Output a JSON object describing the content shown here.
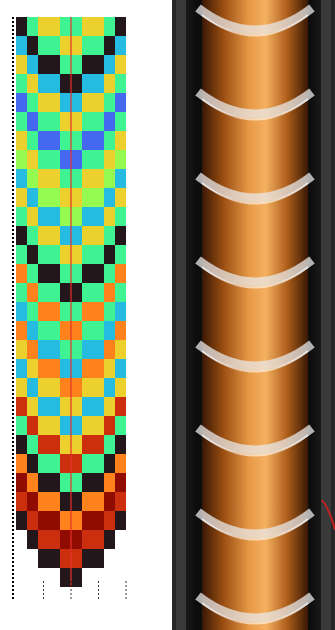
{
  "chart_data": {
    "type": "heatmap",
    "color": "turbo",
    "grid": false,
    "tick_labels": false,
    "cells": [
      [
        1,
        4,
        6,
        6,
        4,
        4,
        6,
        6,
        4,
        1
      ],
      [
        3,
        1,
        4,
        4,
        6,
        6,
        4,
        4,
        1,
        3
      ],
      [
        6,
        3,
        1,
        1,
        4,
        4,
        1,
        1,
        3,
        6
      ],
      [
        4,
        6,
        3,
        3,
        1,
        1,
        3,
        3,
        6,
        4
      ],
      [
        2,
        4,
        6,
        6,
        3,
        3,
        6,
        6,
        4,
        2
      ],
      [
        4,
        2,
        4,
        4,
        6,
        6,
        4,
        4,
        2,
        4
      ],
      [
        6,
        4,
        2,
        2,
        4,
        4,
        2,
        2,
        4,
        6
      ],
      [
        5,
        6,
        4,
        4,
        2,
        2,
        4,
        4,
        6,
        5
      ],
      [
        3,
        5,
        6,
        6,
        4,
        4,
        6,
        6,
        5,
        3
      ],
      [
        6,
        3,
        5,
        5,
        6,
        6,
        5,
        5,
        3,
        6
      ],
      [
        4,
        6,
        3,
        3,
        5,
        5,
        3,
        3,
        6,
        4
      ],
      [
        1,
        4,
        6,
        6,
        3,
        3,
        6,
        6,
        4,
        1
      ],
      [
        4,
        1,
        4,
        4,
        6,
        6,
        4,
        4,
        1,
        4
      ],
      [
        7,
        4,
        1,
        1,
        4,
        4,
        1,
        1,
        4,
        7
      ],
      [
        4,
        7,
        4,
        4,
        1,
        1,
        4,
        4,
        7,
        4
      ],
      [
        3,
        4,
        7,
        7,
        4,
        4,
        7,
        7,
        4,
        3
      ],
      [
        7,
        3,
        4,
        4,
        7,
        7,
        4,
        4,
        3,
        7
      ],
      [
        6,
        7,
        3,
        3,
        4,
        4,
        3,
        3,
        7,
        6
      ],
      [
        3,
        6,
        7,
        7,
        3,
        3,
        7,
        7,
        6,
        3
      ],
      [
        6,
        3,
        6,
        6,
        7,
        7,
        6,
        6,
        3,
        6
      ],
      [
        8,
        6,
        3,
        3,
        6,
        6,
        3,
        3,
        6,
        8
      ],
      [
        4,
        8,
        6,
        6,
        3,
        3,
        6,
        6,
        8,
        4
      ],
      [
        1,
        4,
        8,
        8,
        6,
        6,
        8,
        8,
        4,
        1
      ],
      [
        7,
        1,
        4,
        4,
        8,
        8,
        4,
        4,
        1,
        7
      ],
      [
        9,
        7,
        1,
        1,
        4,
        4,
        1,
        1,
        7,
        9
      ],
      [
        8,
        9,
        7,
        7,
        1,
        1,
        7,
        7,
        9,
        8
      ],
      [
        1,
        8,
        9,
        9,
        7,
        7,
        9,
        9,
        8,
        1
      ],
      [
        null,
        1,
        8,
        8,
        9,
        9,
        8,
        8,
        1,
        null
      ],
      [
        null,
        null,
        1,
        1,
        8,
        8,
        1,
        1,
        null,
        null
      ],
      [
        null,
        null,
        null,
        null,
        1,
        1,
        null,
        null,
        null,
        null
      ]
    ]
  }
}
